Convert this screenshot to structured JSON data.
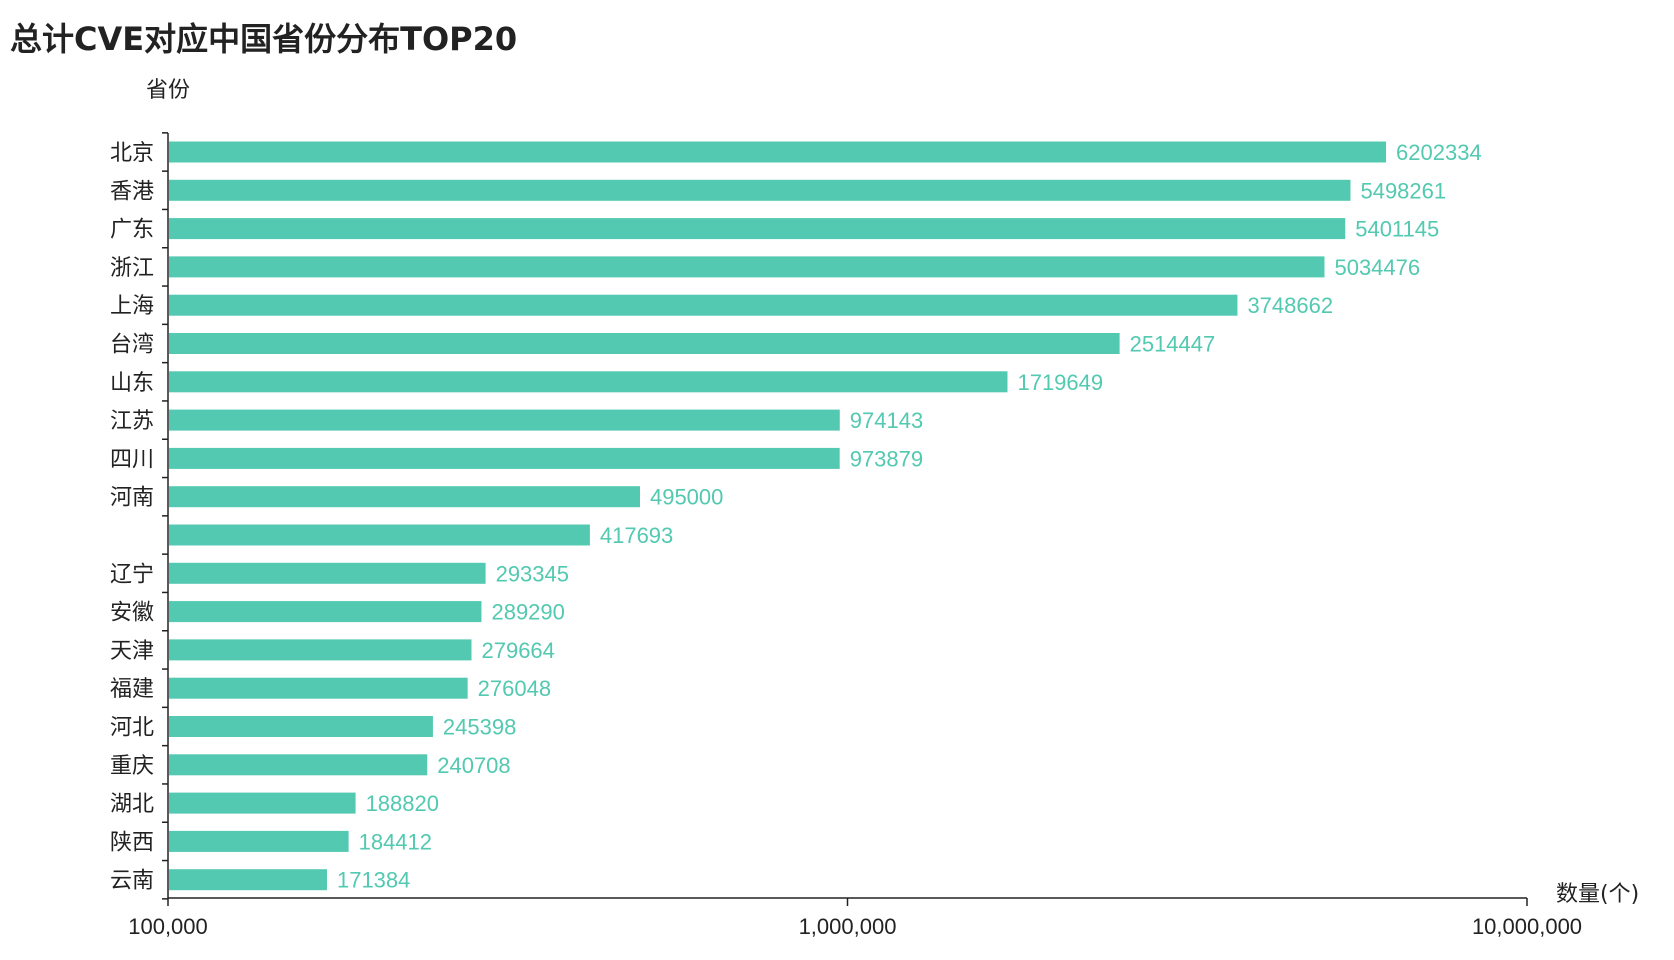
{
  "chart_data": {
    "type": "bar",
    "orientation": "horizontal",
    "title": "总计CVE对应中国省份分布TOP20",
    "ylabel": "省份",
    "xlabel": "数量(个)",
    "xscale": "log",
    "xlim": [
      100000,
      10000000
    ],
    "xticks": [
      "100,000",
      "1,000,000",
      "10,000,000"
    ],
    "xtick_values": [
      100000,
      1000000,
      10000000
    ],
    "bar_color": "#52c9b0",
    "label_color": "#52c9b0",
    "categories": [
      "北京",
      "香港",
      "广东",
      "浙江",
      "上海",
      "台湾",
      "山东",
      "江苏",
      "四川",
      "河南",
      "",
      "辽宁",
      "安徽",
      "天津",
      "福建",
      "河北",
      "重庆",
      "湖北",
      "陕西",
      "云南"
    ],
    "values": [
      6202334,
      5498261,
      5401145,
      5034476,
      3748662,
      2514447,
      1719649,
      974143,
      973879,
      495000,
      417693,
      293345,
      289290,
      279664,
      276048,
      245398,
      240708,
      188820,
      184412,
      171384
    ],
    "data_labels": [
      "6202334",
      "5498261",
      "5401145",
      "5034476",
      "3748662",
      "2514447",
      "1719649",
      "974143",
      "973879",
      "495000",
      "417693",
      "293345",
      "289290",
      "279664",
      "276048",
      "245398",
      "240708",
      "188820",
      "184412",
      "171384"
    ],
    "grid": false,
    "legend": "none"
  }
}
